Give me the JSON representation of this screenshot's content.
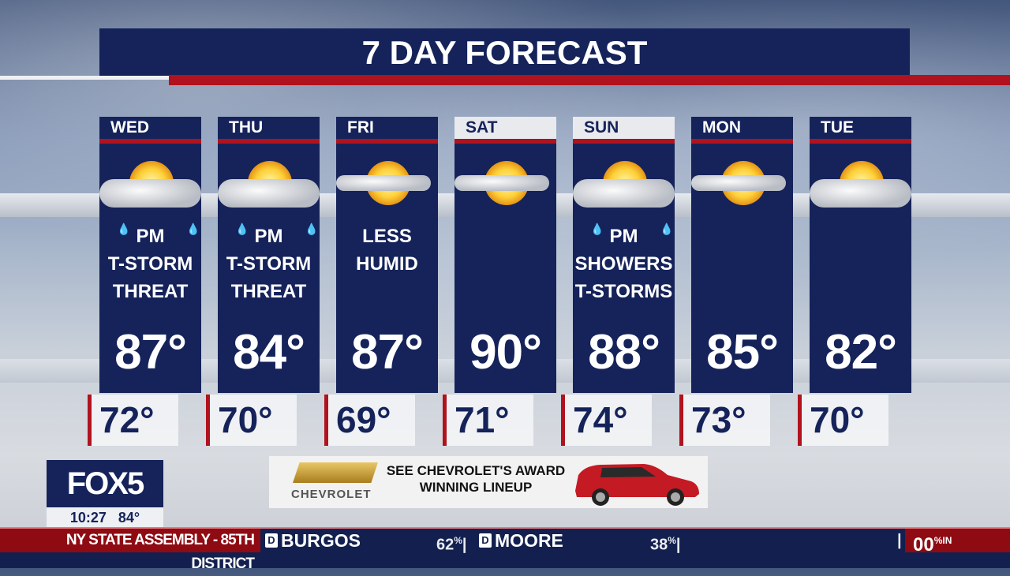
{
  "title": "7 DAY FORECAST",
  "days": [
    {
      "day": "WED",
      "desc": [
        "PM",
        "T-STORM",
        "THREAT"
      ],
      "hi": "87°",
      "lo": "72°",
      "icon": "sun-cloud-rain-icon",
      "header_style": "dark"
    },
    {
      "day": "THU",
      "desc": [
        "PM",
        "T-STORM",
        "THREAT"
      ],
      "hi": "84°",
      "lo": "70°",
      "icon": "sun-cloud-rain-icon",
      "header_style": "dark"
    },
    {
      "day": "FRI",
      "desc": [
        "LESS",
        "HUMID"
      ],
      "hi": "87°",
      "lo": "69°",
      "icon": "sun-thin-cloud-icon",
      "header_style": "dark"
    },
    {
      "day": "SAT",
      "desc": [],
      "hi": "90°",
      "lo": "71°",
      "icon": "sun-thin-cloud-icon",
      "header_style": "light"
    },
    {
      "day": "SUN",
      "desc": [
        "PM",
        "SHOWERS",
        "T-STORMS"
      ],
      "hi": "88°",
      "lo": "74°",
      "icon": "sun-cloud-rain-icon",
      "header_style": "light"
    },
    {
      "day": "MON",
      "desc": [],
      "hi": "85°",
      "lo": "73°",
      "icon": "sun-thin-cloud-icon",
      "header_style": "dark"
    },
    {
      "day": "TUE",
      "desc": [],
      "hi": "82°",
      "lo": "70°",
      "icon": "sun-cloud-icon",
      "header_style": "dark"
    }
  ],
  "station": {
    "logo": "FOX5",
    "time": "10:27",
    "temp": "84°"
  },
  "ad": {
    "brand": "CHEVROLET",
    "text_line1": "SEE CHEVROLET'S AWARD",
    "text_line2": "WINNING LINEUP"
  },
  "ticker": {
    "race": "NY STATE ASSEMBLY - 85TH DISTRICT",
    "candidates": [
      {
        "party": "D",
        "name": "BURGOS",
        "pct": "62"
      },
      {
        "party": "D",
        "name": "MOORE",
        "pct": "38"
      }
    ],
    "reporting": "00",
    "reporting_suffix": "IN",
    "pct_sign": "%"
  },
  "colors": {
    "navy": "#15235a",
    "red": "#b0121e"
  }
}
